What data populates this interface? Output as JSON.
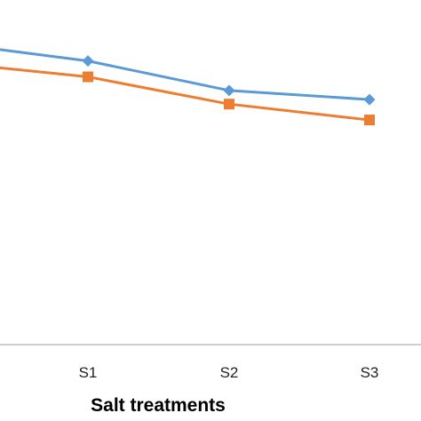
{
  "chart_data": {
    "type": "line",
    "title": "",
    "xlabel": "Salt treatments",
    "ylabel": "",
    "categories": [
      "S1",
      "S2",
      "S3"
    ],
    "series": [
      {
        "marker": "diamond",
        "color": "#5B9BD5",
        "values": [
          65,
          52,
          48
        ]
      },
      {
        "marker": "square",
        "color": "#ED7D31",
        "values": [
          58,
          46,
          39
        ]
      }
    ],
    "series_extends_left_of_view": true,
    "left_edge_values": [
      70,
      62
    ],
    "ylim": [
      -60,
      95
    ],
    "grid": false,
    "legend": "none"
  }
}
